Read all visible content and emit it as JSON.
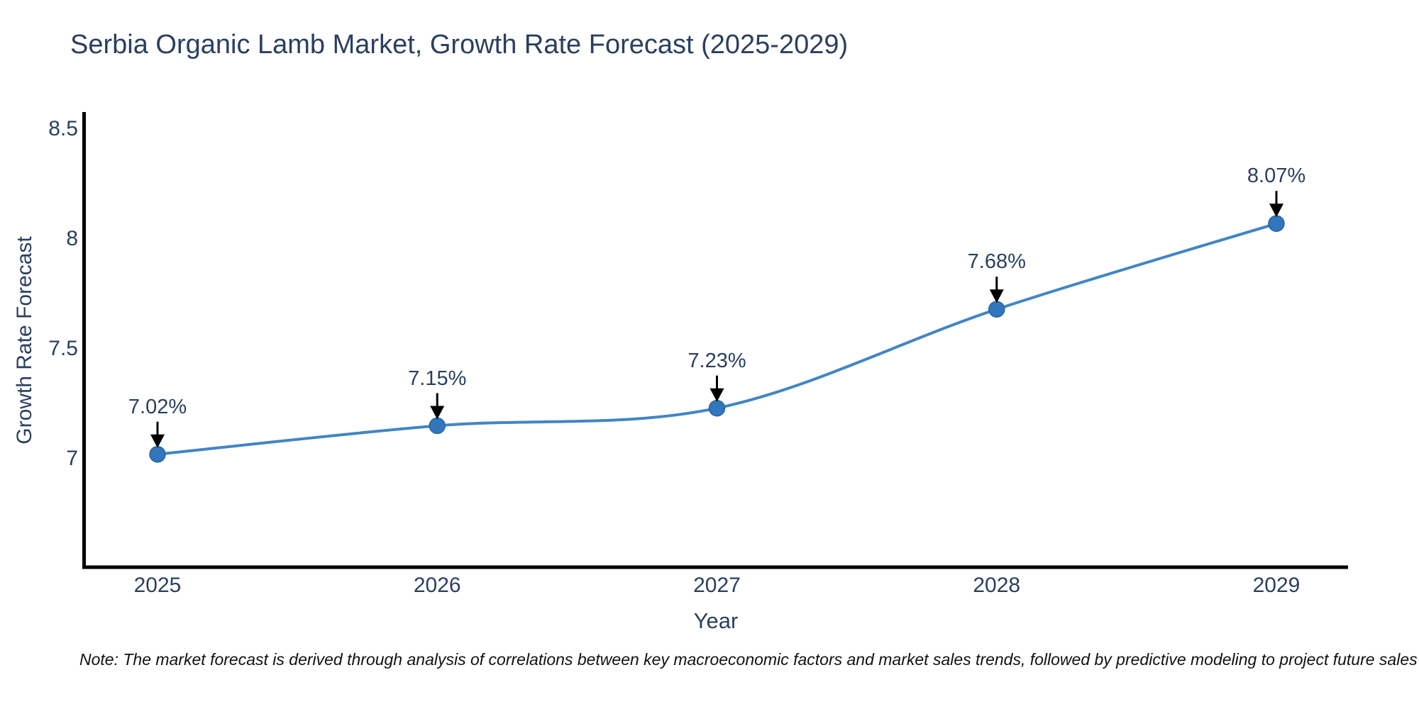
{
  "title": "Serbia Organic Lamb Market, Growth Rate Forecast (2025-2029)",
  "note": "Note: The market forecast is derived through analysis of correlations between key macroeconomic factors and market sales trends, followed by predictive modeling to project future sales",
  "chart_data": {
    "type": "line",
    "title": "Serbia Organic Lamb Market, Growth Rate Forecast (2025-2029)",
    "xlabel": "Year",
    "ylabel": "Growth Rate Forecast",
    "x": [
      2025,
      2026,
      2027,
      2028,
      2029
    ],
    "series": [
      {
        "name": "Growth Rate Forecast",
        "values": [
          7.02,
          7.15,
          7.23,
          7.68,
          8.07
        ]
      }
    ],
    "point_labels": [
      "7.02%",
      "7.15%",
      "7.23%",
      "7.68%",
      "8.07%"
    ],
    "x_tick_labels": [
      "2025",
      "2026",
      "2027",
      "2028",
      "2029"
    ],
    "y_ticks": [
      7,
      7.5,
      8,
      8.5
    ],
    "y_tick_labels": [
      "7",
      "7.5",
      "8",
      "8.5"
    ],
    "ylim": [
      6.51,
      8.57
    ],
    "xlim": [
      2024.74,
      2029.26
    ],
    "line_shape": "spline",
    "grid": false,
    "legend_position": "none",
    "colors": {
      "line": "#4285c3",
      "marker": "#3277bd",
      "marker_edge": "#2a639e",
      "arrow": "#000000",
      "text": "#2a3f5f",
      "axis": "#000000",
      "background": "#ffffff"
    }
  }
}
